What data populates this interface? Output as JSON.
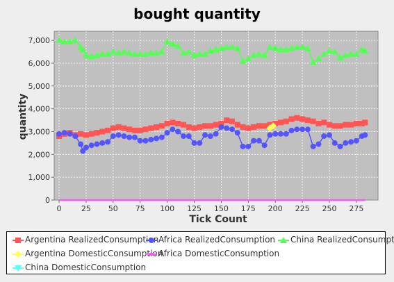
{
  "chart_data": {
    "type": "line",
    "title": "bought quantity",
    "xlabel": "Tick Count",
    "ylabel": "quantity",
    "xlim": [
      0,
      295
    ],
    "ylim": [
      0,
      7400
    ],
    "x_ticks": [
      0,
      25,
      50,
      75,
      100,
      125,
      150,
      175,
      200,
      225,
      250,
      275
    ],
    "y_ticks": [
      "0",
      "1,000",
      "2,000",
      "3,000",
      "4,000",
      "5,000",
      "6,000",
      "7,000"
    ],
    "y_tick_values": [
      0,
      1000,
      2000,
      3000,
      4000,
      5000,
      6000,
      7000
    ],
    "grid": true,
    "legend_position": "bottom",
    "series": [
      {
        "name": "Argentina RealizedConsumption",
        "color": "#ff5555",
        "marker": "square",
        "points": [
          [
            0,
            2800
          ],
          [
            5,
            2900
          ],
          [
            10,
            2950
          ],
          [
            15,
            2850
          ],
          [
            20,
            2900
          ],
          [
            25,
            2850
          ],
          [
            30,
            2900
          ],
          [
            35,
            2950
          ],
          [
            40,
            3000
          ],
          [
            45,
            3050
          ],
          [
            50,
            3150
          ],
          [
            55,
            3200
          ],
          [
            60,
            3150
          ],
          [
            65,
            3100
          ],
          [
            70,
            3050
          ],
          [
            75,
            3050
          ],
          [
            80,
            3100
          ],
          [
            85,
            3150
          ],
          [
            90,
            3200
          ],
          [
            95,
            3250
          ],
          [
            100,
            3350
          ],
          [
            105,
            3400
          ],
          [
            110,
            3350
          ],
          [
            115,
            3300
          ],
          [
            120,
            3200
          ],
          [
            125,
            3150
          ],
          [
            130,
            3200
          ],
          [
            135,
            3250
          ],
          [
            140,
            3250
          ],
          [
            145,
            3300
          ],
          [
            150,
            3350
          ],
          [
            155,
            3500
          ],
          [
            160,
            3450
          ],
          [
            165,
            3300
          ],
          [
            170,
            3200
          ],
          [
            175,
            3150
          ],
          [
            180,
            3200
          ],
          [
            185,
            3250
          ],
          [
            190,
            3250
          ],
          [
            195,
            3300
          ],
          [
            200,
            3350
          ],
          [
            205,
            3400
          ],
          [
            210,
            3450
          ],
          [
            215,
            3550
          ],
          [
            220,
            3600
          ],
          [
            225,
            3550
          ],
          [
            230,
            3500
          ],
          [
            235,
            3450
          ],
          [
            240,
            3350
          ],
          [
            245,
            3400
          ],
          [
            250,
            3300
          ],
          [
            255,
            3250
          ],
          [
            260,
            3250
          ],
          [
            265,
            3300
          ],
          [
            270,
            3300
          ],
          [
            275,
            3350
          ],
          [
            280,
            3350
          ],
          [
            283,
            3400
          ]
        ]
      },
      {
        "name": "Africa RealizedConsumption",
        "color": "#5555ff",
        "marker": "circle",
        "points": [
          [
            0,
            2900
          ],
          [
            5,
            2950
          ],
          [
            10,
            2900
          ],
          [
            15,
            2800
          ],
          [
            20,
            2450
          ],
          [
            22,
            2150
          ],
          [
            25,
            2300
          ],
          [
            30,
            2400
          ],
          [
            35,
            2450
          ],
          [
            40,
            2500
          ],
          [
            45,
            2550
          ],
          [
            50,
            2800
          ],
          [
            55,
            2850
          ],
          [
            60,
            2800
          ],
          [
            65,
            2750
          ],
          [
            70,
            2750
          ],
          [
            75,
            2600
          ],
          [
            80,
            2600
          ],
          [
            85,
            2650
          ],
          [
            90,
            2700
          ],
          [
            95,
            2750
          ],
          [
            100,
            2950
          ],
          [
            105,
            3100
          ],
          [
            110,
            3000
          ],
          [
            115,
            2800
          ],
          [
            120,
            2800
          ],
          [
            125,
            2500
          ],
          [
            130,
            2500
          ],
          [
            135,
            2850
          ],
          [
            140,
            2800
          ],
          [
            145,
            2900
          ],
          [
            150,
            3200
          ],
          [
            155,
            3150
          ],
          [
            160,
            3100
          ],
          [
            165,
            2950
          ],
          [
            170,
            2350
          ],
          [
            175,
            2350
          ],
          [
            180,
            2600
          ],
          [
            185,
            2600
          ],
          [
            190,
            2400
          ],
          [
            195,
            2850
          ],
          [
            200,
            2900
          ],
          [
            205,
            2900
          ],
          [
            210,
            2900
          ],
          [
            215,
            3050
          ],
          [
            220,
            3100
          ],
          [
            225,
            3100
          ],
          [
            230,
            3100
          ],
          [
            235,
            2350
          ],
          [
            240,
            2450
          ],
          [
            245,
            2800
          ],
          [
            250,
            2850
          ],
          [
            255,
            2500
          ],
          [
            260,
            2350
          ],
          [
            265,
            2500
          ],
          [
            270,
            2550
          ],
          [
            275,
            2600
          ],
          [
            280,
            2800
          ],
          [
            283,
            2850
          ]
        ]
      },
      {
        "name": "China RealizedConsumption",
        "color": "#55ff55",
        "marker": "triangle-up",
        "points": [
          [
            0,
            7000
          ],
          [
            5,
            6950
          ],
          [
            10,
            6950
          ],
          [
            15,
            7000
          ],
          [
            20,
            6700
          ],
          [
            22,
            6600
          ],
          [
            25,
            6350
          ],
          [
            30,
            6300
          ],
          [
            35,
            6350
          ],
          [
            40,
            6400
          ],
          [
            45,
            6400
          ],
          [
            50,
            6500
          ],
          [
            55,
            6450
          ],
          [
            60,
            6500
          ],
          [
            65,
            6450
          ],
          [
            70,
            6400
          ],
          [
            75,
            6400
          ],
          [
            80,
            6400
          ],
          [
            85,
            6450
          ],
          [
            90,
            6450
          ],
          [
            95,
            6500
          ],
          [
            100,
            6950
          ],
          [
            105,
            6850
          ],
          [
            110,
            6750
          ],
          [
            115,
            6450
          ],
          [
            120,
            6500
          ],
          [
            125,
            6350
          ],
          [
            130,
            6400
          ],
          [
            135,
            6400
          ],
          [
            140,
            6550
          ],
          [
            145,
            6600
          ],
          [
            150,
            6650
          ],
          [
            155,
            6700
          ],
          [
            160,
            6700
          ],
          [
            165,
            6650
          ],
          [
            170,
            6100
          ],
          [
            175,
            6200
          ],
          [
            180,
            6350
          ],
          [
            185,
            6400
          ],
          [
            190,
            6350
          ],
          [
            195,
            6700
          ],
          [
            200,
            6650
          ],
          [
            205,
            6600
          ],
          [
            210,
            6600
          ],
          [
            215,
            6650
          ],
          [
            220,
            6700
          ],
          [
            225,
            6700
          ],
          [
            230,
            6650
          ],
          [
            235,
            6050
          ],
          [
            240,
            6200
          ],
          [
            245,
            6400
          ],
          [
            250,
            6550
          ],
          [
            255,
            6500
          ],
          [
            260,
            6250
          ],
          [
            265,
            6350
          ],
          [
            270,
            6400
          ],
          [
            275,
            6400
          ],
          [
            280,
            6600
          ],
          [
            283,
            6550
          ]
        ]
      },
      {
        "name": "Argentina DomesticConsumption",
        "color": "#ffff55",
        "marker": "diamond",
        "points": [
          [
            195,
            3150
          ],
          [
            198,
            3250
          ]
        ]
      },
      {
        "name": "Africa DomesticConsumption",
        "color": "#ff55ff",
        "marker": "square-small",
        "points": [
          [
            0,
            0
          ],
          [
            283,
            0
          ]
        ]
      },
      {
        "name": "China DomesticConsumption",
        "color": "#55ffff",
        "marker": "triangle-down",
        "points": []
      }
    ]
  }
}
